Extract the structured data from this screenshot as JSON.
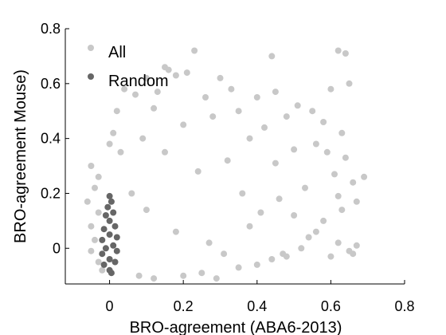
{
  "chart_data": {
    "type": "scatter",
    "xlabel": "BRO-agreement (ABA6-2013)",
    "ylabel": "BRO-agreement Mouse)",
    "xlim": [
      -0.12,
      0.8
    ],
    "ylim": [
      -0.13,
      0.8
    ],
    "x_ticks": [
      0,
      0.2,
      0.4,
      0.6,
      0.8
    ],
    "y_ticks": [
      0,
      0.2,
      0.4,
      0.6,
      0.8
    ],
    "x_tick_labels": [
      "0",
      "0.2",
      "0.4",
      "0.6",
      "0.8"
    ],
    "y_tick_labels": [
      "0",
      "0.2",
      "0.4",
      "0.6",
      "0.8"
    ],
    "grid": false,
    "legend_position": "top-left",
    "series": [
      {
        "name": "All",
        "color": "#c8c8c8",
        "points": [
          [
            0.23,
            0.72
          ],
          [
            0.62,
            0.72
          ],
          [
            0.64,
            0.71
          ],
          [
            0.44,
            0.7
          ],
          [
            0.15,
            0.66
          ],
          [
            0.16,
            0.65
          ],
          [
            0.18,
            0.63
          ],
          [
            0.21,
            0.64
          ],
          [
            0.1,
            0.62
          ],
          [
            0.3,
            0.62
          ],
          [
            0.33,
            0.58
          ],
          [
            0.45,
            0.57
          ],
          [
            0.65,
            0.6
          ],
          [
            0.6,
            0.58
          ],
          [
            0.04,
            0.58
          ],
          [
            0.07,
            0.56
          ],
          [
            0.13,
            0.57
          ],
          [
            0.26,
            0.55
          ],
          [
            0.4,
            0.55
          ],
          [
            0.51,
            0.52
          ],
          [
            0.55,
            0.5
          ],
          [
            0.02,
            0.5
          ],
          [
            0.12,
            0.51
          ],
          [
            0.35,
            0.5
          ],
          [
            0.58,
            0.46
          ],
          [
            0.48,
            0.48
          ],
          [
            0.28,
            0.48
          ],
          [
            0.63,
            0.42
          ],
          [
            0.42,
            0.44
          ],
          [
            0.56,
            0.38
          ],
          [
            0.59,
            0.35
          ],
          [
            0.64,
            0.33
          ],
          [
            0.5,
            0.36
          ],
          [
            0.45,
            0.31
          ],
          [
            0.61,
            0.27
          ],
          [
            0.66,
            0.24
          ],
          [
            0.69,
            0.26
          ],
          [
            0.67,
            0.17
          ],
          [
            0.62,
            0.19
          ],
          [
            0.63,
            0.14
          ],
          [
            0.58,
            0.1
          ],
          [
            0.56,
            0.06
          ],
          [
            0.54,
            0.04
          ],
          [
            0.62,
            0.02
          ],
          [
            0.67,
            0.01
          ],
          [
            0.65,
            -0.01
          ],
          [
            0.66,
            -0.02
          ],
          [
            0.6,
            -0.03
          ],
          [
            0.48,
            -0.03
          ],
          [
            0.44,
            -0.04
          ],
          [
            0.4,
            -0.06
          ],
          [
            0.35,
            -0.07
          ],
          [
            0.25,
            -0.09
          ],
          [
            0.2,
            -0.1
          ],
          [
            0.12,
            -0.11
          ],
          [
            0.08,
            -0.1
          ],
          [
            0.29,
            -0.11
          ],
          [
            0.47,
            -0.02
          ],
          [
            0.52,
            0.0
          ],
          [
            -0.05,
            0.3
          ],
          [
            -0.03,
            0.26
          ],
          [
            -0.04,
            0.22
          ],
          [
            -0.06,
            0.17
          ],
          [
            -0.03,
            0.13
          ],
          [
            -0.05,
            0.08
          ],
          [
            -0.04,
            0.03
          ],
          [
            -0.05,
            -0.01
          ],
          [
            -0.03,
            -0.05
          ],
          [
            -0.02,
            -0.08
          ],
          [
            0.0,
            0.38
          ],
          [
            0.01,
            0.42
          ],
          [
            0.03,
            0.35
          ],
          [
            0.38,
            0.08
          ],
          [
            0.41,
            0.13
          ],
          [
            0.36,
            0.2
          ],
          [
            0.46,
            0.18
          ],
          [
            0.5,
            0.12
          ],
          [
            0.53,
            0.22
          ],
          [
            0.32,
            0.32
          ],
          [
            0.38,
            0.4
          ],
          [
            0.2,
            0.45
          ],
          [
            0.09,
            0.4
          ],
          [
            0.15,
            0.35
          ],
          [
            0.24,
            0.28
          ],
          [
            0.06,
            0.2
          ],
          [
            0.1,
            0.14
          ],
          [
            0.18,
            0.06
          ],
          [
            0.27,
            0.02
          ],
          [
            0.31,
            -0.02
          ]
        ]
      },
      {
        "name": "Random",
        "color": "#666666",
        "points": [
          [
            0.0,
            0.19
          ],
          [
            0.005,
            0.17
          ],
          [
            -0.005,
            0.15
          ],
          [
            0.01,
            0.13
          ],
          [
            -0.01,
            0.12
          ],
          [
            0.0,
            0.1
          ],
          [
            0.015,
            0.08
          ],
          [
            -0.015,
            0.07
          ],
          [
            0.0,
            0.05
          ],
          [
            0.02,
            0.04
          ],
          [
            -0.02,
            0.03
          ],
          [
            0.01,
            0.01
          ],
          [
            -0.01,
            0.0
          ],
          [
            0.02,
            -0.01
          ],
          [
            -0.02,
            -0.02
          ],
          [
            0.0,
            -0.04
          ],
          [
            0.015,
            -0.05
          ],
          [
            -0.015,
            -0.06
          ],
          [
            0.0,
            -0.08
          ],
          [
            0.005,
            -0.09
          ]
        ]
      }
    ]
  }
}
